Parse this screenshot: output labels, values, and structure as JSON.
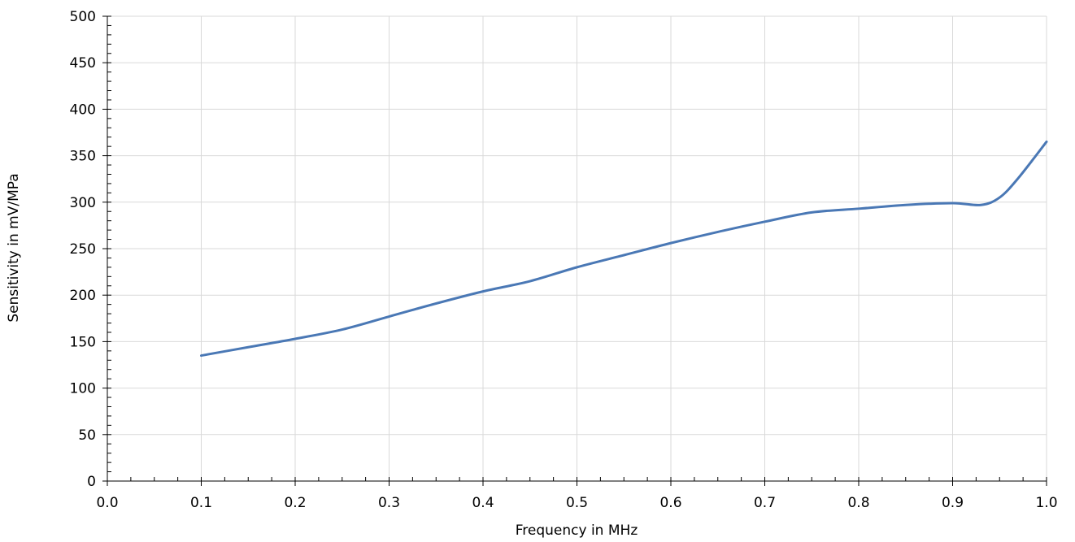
{
  "chart_data": {
    "type": "line",
    "title": "",
    "xlabel": "Frequency in MHz",
    "ylabel": "Sensitivity in mV/MPa",
    "xlim": [
      0,
      1.0
    ],
    "ylim": [
      0,
      500
    ],
    "x_ticks": [
      "0.0",
      "0.1",
      "0.2",
      "0.3",
      "0.4",
      "0.5",
      "0.6",
      "0.7",
      "0.8",
      "0.9",
      "1.0"
    ],
    "y_ticks": [
      "0",
      "50",
      "100",
      "150",
      "200",
      "250",
      "300",
      "350",
      "400",
      "450",
      "500"
    ],
    "grid": true,
    "legend": "none",
    "series": [
      {
        "color": "#4a78b5",
        "x": [
          0.1,
          0.15,
          0.2,
          0.25,
          0.3,
          0.35,
          0.4,
          0.45,
          0.5,
          0.55,
          0.6,
          0.65,
          0.7,
          0.75,
          0.8,
          0.85,
          0.9,
          0.93,
          0.95,
          0.97,
          1.0
        ],
        "y": [
          135,
          144,
          153,
          163,
          177,
          191,
          204,
          215,
          230,
          243,
          256,
          268,
          279,
          289,
          293,
          297,
          299,
          297,
          305,
          326,
          365
        ]
      }
    ]
  }
}
